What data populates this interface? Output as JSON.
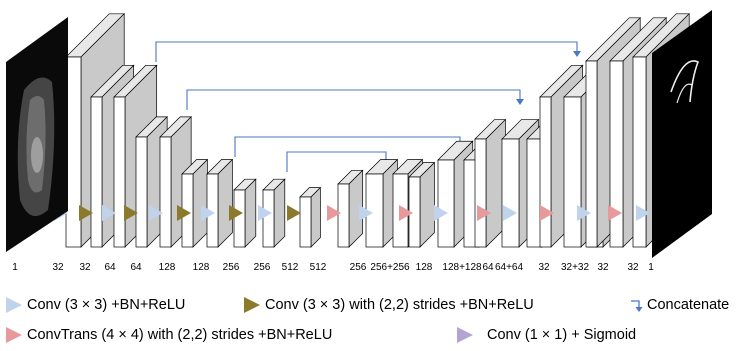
{
  "colors": {
    "conv": "#bfd3ec",
    "strided": "#8b7a2b",
    "convtrans": "#e79a9c",
    "sigmoid": "#b3a4d2",
    "concat": "#4a78c2",
    "block_face": "#ffffff",
    "block_side": "#c9c9c9",
    "block_top": "#e8e8e8"
  },
  "labels": [
    "1",
    "32",
    "32",
    "64",
    "64",
    "128",
    "128",
    "256",
    "256",
    "512",
    "512",
    "256",
    "256+256",
    "128",
    "128+128",
    "64",
    "64+64",
    "32",
    "32+32",
    "32",
    "32",
    "1"
  ],
  "legend": {
    "conv": "Conv (3 × 3) +BN+ReLU",
    "strided": "Conv (3 × 3) with (2,2) strides +BN+ReLU",
    "concat": "Concatenate",
    "convtrans": "ConvTrans (4 × 4) with (2,2) strides +BN+ReLU",
    "sigmoid": "Conv (1 × 1) + Sigmoid"
  },
  "icons": [
    "conv-triangle-icon",
    "strided-conv-triangle-icon",
    "concatenate-arrow-icon",
    "convtrans-triangle-icon",
    "sigmoid-triangle-icon",
    "input-ct-image",
    "output-mask-image"
  ]
}
